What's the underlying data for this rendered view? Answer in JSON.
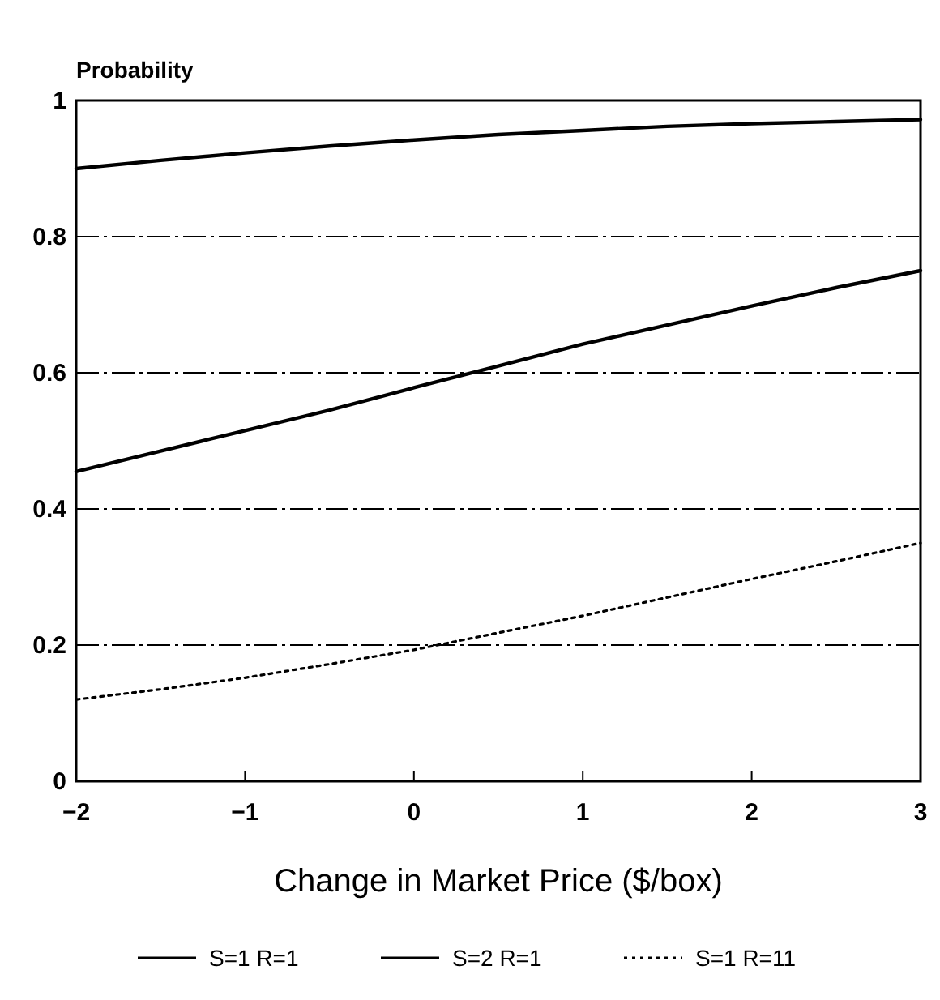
{
  "chart_data": {
    "type": "line",
    "ylabel": "Probability",
    "xlabel": "Change in Market Price ($/box)",
    "x": [
      -2,
      -1.5,
      -1,
      -0.5,
      0,
      0.5,
      1,
      1.5,
      2,
      2.5,
      3
    ],
    "xlim": [
      -2,
      3
    ],
    "xticks": [
      -2,
      -1,
      0,
      1,
      2,
      3
    ],
    "ylim": [
      0,
      1
    ],
    "yticks": [
      0,
      0.2,
      0.4,
      0.6,
      0.8,
      1
    ],
    "grid": "y",
    "legend": "bottom",
    "marker": "none",
    "series": [
      {
        "name": "S=1 R=1",
        "color": "#000000",
        "line_style": "solid",
        "values": [
          0.455,
          0.485,
          0.515,
          0.545,
          0.578,
          0.61,
          0.642,
          0.67,
          0.698,
          0.725,
          0.75
        ]
      },
      {
        "name": "S=2 R=1",
        "color": "#000000",
        "line_style": "solid",
        "values": [
          0.9,
          0.912,
          0.923,
          0.933,
          0.942,
          0.95,
          0.956,
          0.962,
          0.966,
          0.969,
          0.972
        ]
      },
      {
        "name": "S=1 R=11",
        "color": "#000000",
        "line_style": "dotted",
        "values": [
          0.12,
          0.135,
          0.152,
          0.172,
          0.193,
          0.218,
          0.243,
          0.27,
          0.297,
          0.323,
          0.35
        ]
      }
    ]
  }
}
